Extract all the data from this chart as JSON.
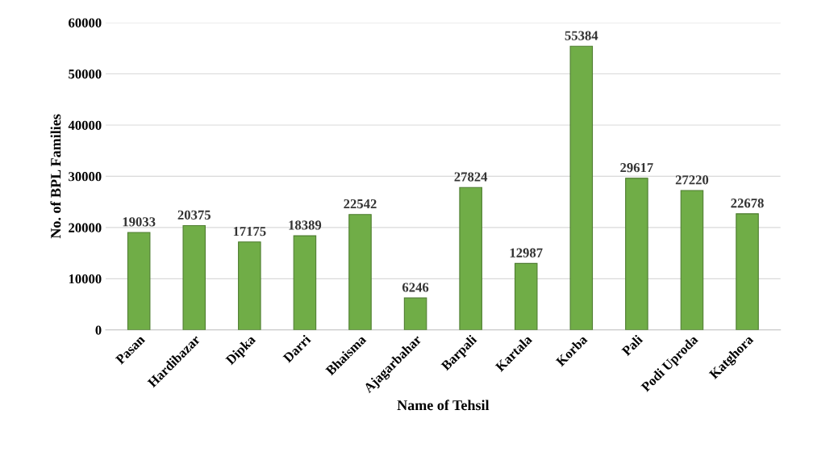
{
  "chart_data": {
    "type": "bar",
    "xlabel": "Name of Tehsil",
    "ylabel": "No. of BPL Families",
    "categories": [
      "Pasan",
      "Hardibazar",
      "Dipka",
      "Darri",
      "Bhaisma",
      "Ajagarbahar",
      "Barpali",
      "Kartala",
      "Korba",
      "Pali",
      "Podi Uproda",
      "Katghora"
    ],
    "values": [
      19033,
      20375,
      17175,
      18389,
      22542,
      6246,
      27824,
      12987,
      55384,
      29617,
      27220,
      22678
    ],
    "color": "#70ad47",
    "ylim": [
      0,
      60000
    ],
    "yticks": [
      0,
      10000,
      20000,
      30000,
      40000,
      50000,
      60000
    ],
    "grid": "y",
    "data_labels": true,
    "legend": false
  }
}
